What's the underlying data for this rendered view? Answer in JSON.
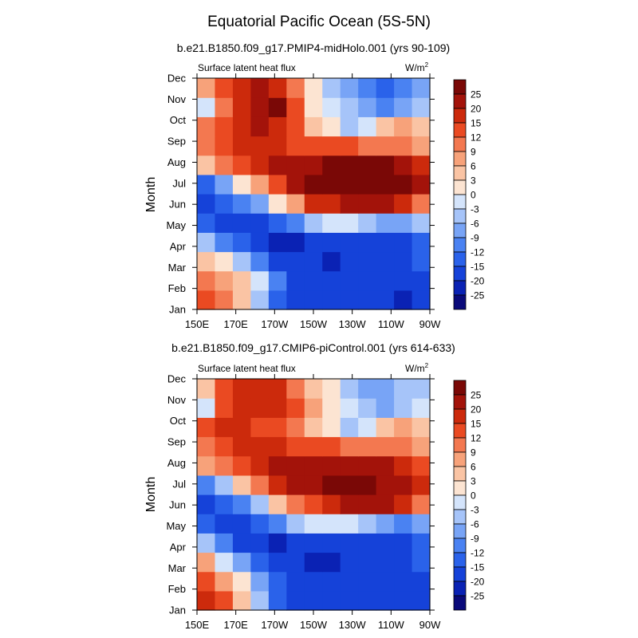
{
  "figure": {
    "title": "Equatorial Pacific Ocean (5S-5N)"
  },
  "colors": {
    "levels": [
      -25,
      -20,
      -15,
      -12,
      -9,
      -6,
      -3,
      0,
      3,
      6,
      9,
      12,
      15,
      20,
      25
    ],
    "fills": [
      "#0a0a7a",
      "#0a22b4",
      "#1542d9",
      "#2a62ea",
      "#4a82f2",
      "#78a4f6",
      "#a6c4f9",
      "#d4e4fb",
      "#fce4d2",
      "#fac4a4",
      "#f7a27a",
      "#f37850",
      "#ea4a22",
      "#cc2a0c",
      "#a3130a",
      "#7a0806"
    ]
  },
  "chart_data": [
    {
      "type": "heatmap",
      "title": "b.e21.B1850.f09_g17.PMIP4-midHolo.001 (yrs 90-109)",
      "variable_label": "Surface latent heat flux",
      "units_label": "W/m",
      "units_sup": "2",
      "ylabel": "Month",
      "x_ticks": [
        "150E",
        "170E",
        "170W",
        "150W",
        "130W",
        "110W",
        "90W"
      ],
      "y_ticks": [
        "Jan",
        "Feb",
        "Mar",
        "Apr",
        "May",
        "Jun",
        "Jul",
        "Aug",
        "Sep",
        "Oct",
        "Nov",
        "Dec"
      ],
      "colorbar_labels": [
        "25",
        "20",
        "15",
        "12",
        "9",
        "6",
        "3",
        "0",
        "-3",
        "-6",
        "-9",
        "-12",
        "-15",
        "-20",
        "-25"
      ],
      "columns": [
        "150E",
        "160E",
        "170E",
        "180",
        "170W",
        "160W",
        "150W",
        "140W",
        "130W",
        "120W",
        "110W",
        "100W",
        "90W"
      ],
      "rows": [
        "Jan",
        "Feb",
        "Mar",
        "Apr",
        "May",
        "Jun",
        "Jul",
        "Aug",
        "Sep",
        "Oct",
        "Nov",
        "Dec"
      ],
      "values": [
        [
          12,
          9,
          3,
          -6,
          -15,
          -20,
          -20,
          -20,
          -20,
          -20,
          -20,
          -22,
          -20
        ],
        [
          9,
          6,
          3,
          -3,
          -12,
          -20,
          -20,
          -20,
          -20,
          -20,
          -20,
          -20,
          -18
        ],
        [
          3,
          0,
          -6,
          -12,
          -20,
          -20,
          -20,
          -25,
          -20,
          -20,
          -20,
          -20,
          -15
        ],
        [
          -6,
          -12,
          -15,
          -20,
          -25,
          -25,
          -20,
          -20,
          -20,
          -20,
          -20,
          -20,
          -15
        ],
        [
          -15,
          -20,
          -20,
          -20,
          -15,
          -12,
          -6,
          -3,
          -3,
          -6,
          -9,
          -9,
          -6
        ],
        [
          -20,
          -15,
          -12,
          -9,
          0,
          6,
          15,
          15,
          20,
          20,
          20,
          15,
          9
        ],
        [
          -15,
          -9,
          0,
          6,
          12,
          20,
          25,
          25,
          25,
          25,
          25,
          25,
          20
        ],
        [
          3,
          9,
          12,
          15,
          20,
          20,
          20,
          25,
          25,
          25,
          25,
          20,
          15
        ],
        [
          9,
          12,
          15,
          15,
          15,
          12,
          12,
          12,
          12,
          9,
          9,
          9,
          6
        ],
        [
          9,
          12,
          15,
          20,
          15,
          12,
          3,
          0,
          -6,
          -3,
          3,
          6,
          3
        ],
        [
          -3,
          9,
          15,
          20,
          25,
          12,
          0,
          -3,
          -6,
          -9,
          -12,
          -9,
          -6
        ],
        [
          6,
          12,
          15,
          20,
          15,
          9,
          0,
          -6,
          -9,
          -12,
          -15,
          -12,
          -9
        ]
      ]
    },
    {
      "type": "heatmap",
      "title": "b.e21.B1850.f09_g17.CMIP6-piControl.001 (yrs 614-633)",
      "variable_label": "Surface latent heat flux",
      "units_label": "W/m",
      "units_sup": "2",
      "ylabel": "Month",
      "x_ticks": [
        "150E",
        "170E",
        "170W",
        "150W",
        "130W",
        "110W",
        "90W"
      ],
      "y_ticks": [
        "Jan",
        "Feb",
        "Mar",
        "Apr",
        "May",
        "Jun",
        "Jul",
        "Aug",
        "Sep",
        "Oct",
        "Nov",
        "Dec"
      ],
      "colorbar_labels": [
        "25",
        "20",
        "15",
        "12",
        "9",
        "6",
        "3",
        "0",
        "-3",
        "-6",
        "-9",
        "-12",
        "-15",
        "-20",
        "-25"
      ],
      "columns": [
        "150E",
        "160E",
        "170E",
        "180",
        "170W",
        "160W",
        "150W",
        "140W",
        "130W",
        "120W",
        "110W",
        "100W",
        "90W"
      ],
      "rows": [
        "Jan",
        "Feb",
        "Mar",
        "Apr",
        "May",
        "Jun",
        "Jul",
        "Aug",
        "Sep",
        "Oct",
        "Nov",
        "Dec"
      ],
      "values": [
        [
          15,
          12,
          3,
          -6,
          -15,
          -20,
          -20,
          -20,
          -20,
          -20,
          -20,
          -20,
          -20
        ],
        [
          12,
          6,
          0,
          -9,
          -15,
          -20,
          -20,
          -20,
          -20,
          -20,
          -20,
          -20,
          -20
        ],
        [
          6,
          -3,
          -9,
          -15,
          -20,
          -20,
          -25,
          -25,
          -20,
          -20,
          -20,
          -20,
          -15
        ],
        [
          -6,
          -12,
          -20,
          -20,
          -25,
          -20,
          -20,
          -20,
          -20,
          -20,
          -20,
          -20,
          -15
        ],
        [
          -15,
          -20,
          -20,
          -15,
          -12,
          -6,
          -3,
          -3,
          -3,
          -6,
          -9,
          -12,
          -9
        ],
        [
          -20,
          -15,
          -12,
          -6,
          3,
          9,
          12,
          15,
          20,
          20,
          20,
          15,
          9
        ],
        [
          -12,
          -6,
          3,
          9,
          15,
          20,
          20,
          25,
          25,
          25,
          20,
          20,
          15
        ],
        [
          6,
          9,
          12,
          15,
          20,
          20,
          20,
          20,
          20,
          20,
          20,
          15,
          12
        ],
        [
          9,
          12,
          15,
          15,
          15,
          12,
          12,
          12,
          9,
          9,
          9,
          9,
          6
        ],
        [
          12,
          15,
          15,
          12,
          12,
          9,
          3,
          0,
          -6,
          -3,
          3,
          6,
          3
        ],
        [
          -3,
          12,
          15,
          15,
          15,
          12,
          6,
          0,
          -3,
          -6,
          -9,
          -6,
          -3
        ],
        [
          3,
          12,
          15,
          15,
          15,
          9,
          3,
          0,
          -6,
          -9,
          -9,
          -6,
          -6
        ]
      ]
    }
  ]
}
